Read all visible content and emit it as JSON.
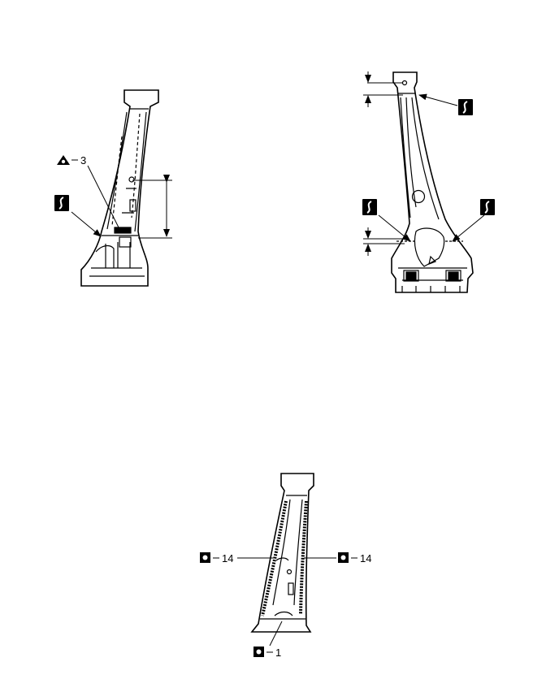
{
  "symbols": {
    "weld_spot_icon": "weld-point-square-icon",
    "triangle_weld_icon": "triangle-weld-icon",
    "sectioning_icon": "sectioning-cut-icon"
  },
  "labels": {
    "triangle_count": "3",
    "left_weld_count": "14",
    "right_weld_count": "14",
    "bottom_weld_count": "1"
  },
  "colors": {
    "ink": "#000000",
    "background": "#ffffff"
  }
}
